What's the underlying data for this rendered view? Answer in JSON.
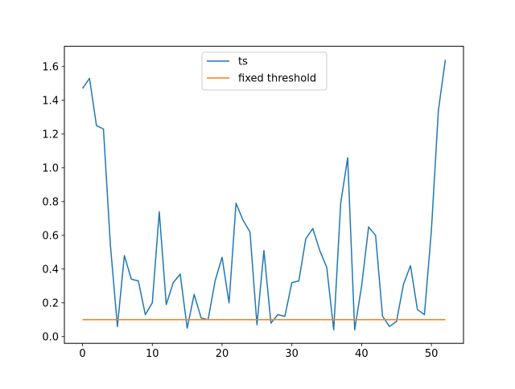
{
  "chart_data": {
    "type": "line",
    "title": "",
    "xlabel": "",
    "ylabel": "",
    "xlim": [
      -2.6,
      54.6
    ],
    "ylim": [
      -0.04,
      1.72
    ],
    "x_ticks": [
      0,
      10,
      20,
      30,
      40,
      50
    ],
    "x_tick_labels": [
      "0",
      "10",
      "20",
      "30",
      "40",
      "50"
    ],
    "y_ticks": [
      0.0,
      0.2,
      0.4,
      0.6,
      0.8,
      1.0,
      1.2,
      1.4,
      1.6
    ],
    "y_tick_labels": [
      "0.0",
      "0.2",
      "0.4",
      "0.6",
      "0.8",
      "1.0",
      "1.2",
      "1.4",
      "1.6"
    ],
    "grid": false,
    "legend_position": "top-center",
    "series": [
      {
        "name": "ts",
        "color": "#1f77b4",
        "x": [
          0,
          1,
          2,
          3,
          4,
          5,
          6,
          7,
          8,
          9,
          10,
          11,
          12,
          13,
          14,
          15,
          16,
          17,
          18,
          19,
          20,
          21,
          22,
          23,
          24,
          25,
          26,
          27,
          28,
          29,
          30,
          31,
          32,
          33,
          34,
          35,
          36,
          37,
          38,
          39,
          40,
          41,
          42,
          43,
          44,
          45,
          46,
          47,
          48,
          49,
          50,
          51,
          52
        ],
        "values": [
          1.47,
          1.53,
          1.25,
          1.23,
          0.54,
          0.06,
          0.48,
          0.34,
          0.33,
          0.13,
          0.2,
          0.74,
          0.19,
          0.32,
          0.37,
          0.05,
          0.25,
          0.11,
          0.1,
          0.33,
          0.47,
          0.2,
          0.79,
          0.69,
          0.62,
          0.07,
          0.51,
          0.08,
          0.13,
          0.12,
          0.32,
          0.33,
          0.58,
          0.64,
          0.51,
          0.41,
          0.04,
          0.79,
          1.06,
          0.04,
          0.3,
          0.65,
          0.6,
          0.12,
          0.06,
          0.09,
          0.31,
          0.42,
          0.16,
          0.13,
          0.63,
          1.34,
          1.64
        ]
      },
      {
        "name": "fixed threshold",
        "color": "#ff7f0e",
        "x": [
          0,
          52
        ],
        "values": [
          0.1,
          0.1
        ]
      }
    ]
  }
}
